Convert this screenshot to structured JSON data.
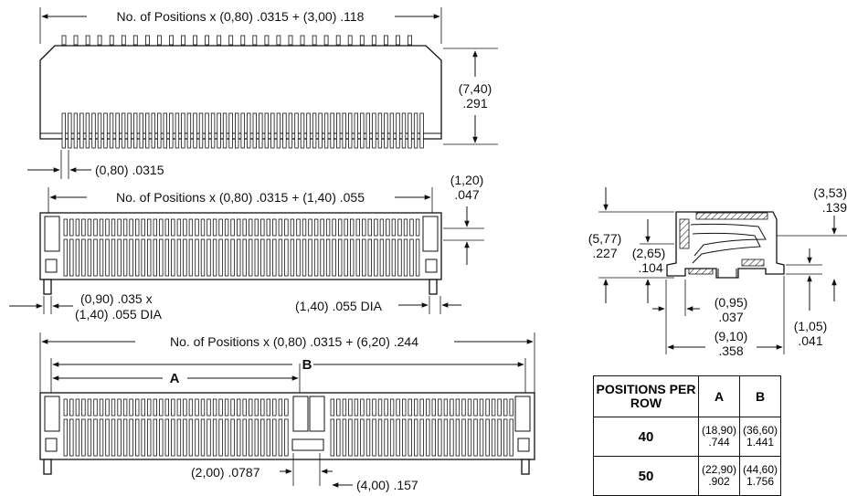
{
  "top_view": {
    "length_dim": "No. of Positions x (0,80) .0315 + (3,00) .118",
    "height_dim_mm": "(7,40)",
    "height_dim_in": ".291",
    "pitch_dim": "(0,80) .0315"
  },
  "mid_view": {
    "length_dim": "No. of Positions x (0,80) .0315 + (1,40) .055",
    "pin_dim_mm": "(1,20)",
    "pin_dim_in": ".047",
    "peg_dim_line1": "(0,90) .035 x",
    "peg_dim_line2": "(1,40) .055 DIA",
    "hole_dim": "(1,40) .055 DIA"
  },
  "bottom_view": {
    "length_dim": "No. of Positions x (0,80) .0315 + (6,20) .244",
    "label_a": "A",
    "label_b": "B",
    "key_dim": "(2,00) .0787",
    "gap_dim": "(4,00) .157"
  },
  "side_view": {
    "height_total_mm": "(5,77)",
    "height_total_in": ".227",
    "height_mid_mm": "(2,65)",
    "height_mid_in": ".104",
    "top_dim_mm": "(3,53)",
    "top_dim_in": ".139",
    "foot_dim_mm": "(0,95)",
    "foot_dim_in": ".037",
    "width_dim_mm": "(9,10)",
    "width_dim_in": ".358",
    "base_dim_mm": "(1,05)",
    "base_dim_in": ".041"
  },
  "table": {
    "headers": [
      "POSITIONS PER ROW",
      "A",
      "B"
    ],
    "rows": [
      {
        "positions": "40",
        "a_mm": "(18,90)",
        "a_in": ".744",
        "b_mm": "(36,60)",
        "b_in": "1.441"
      },
      {
        "positions": "50",
        "a_mm": "(22,90)",
        "a_in": ".902",
        "b_mm": "(44,60)",
        "b_in": "1.756"
      }
    ]
  }
}
